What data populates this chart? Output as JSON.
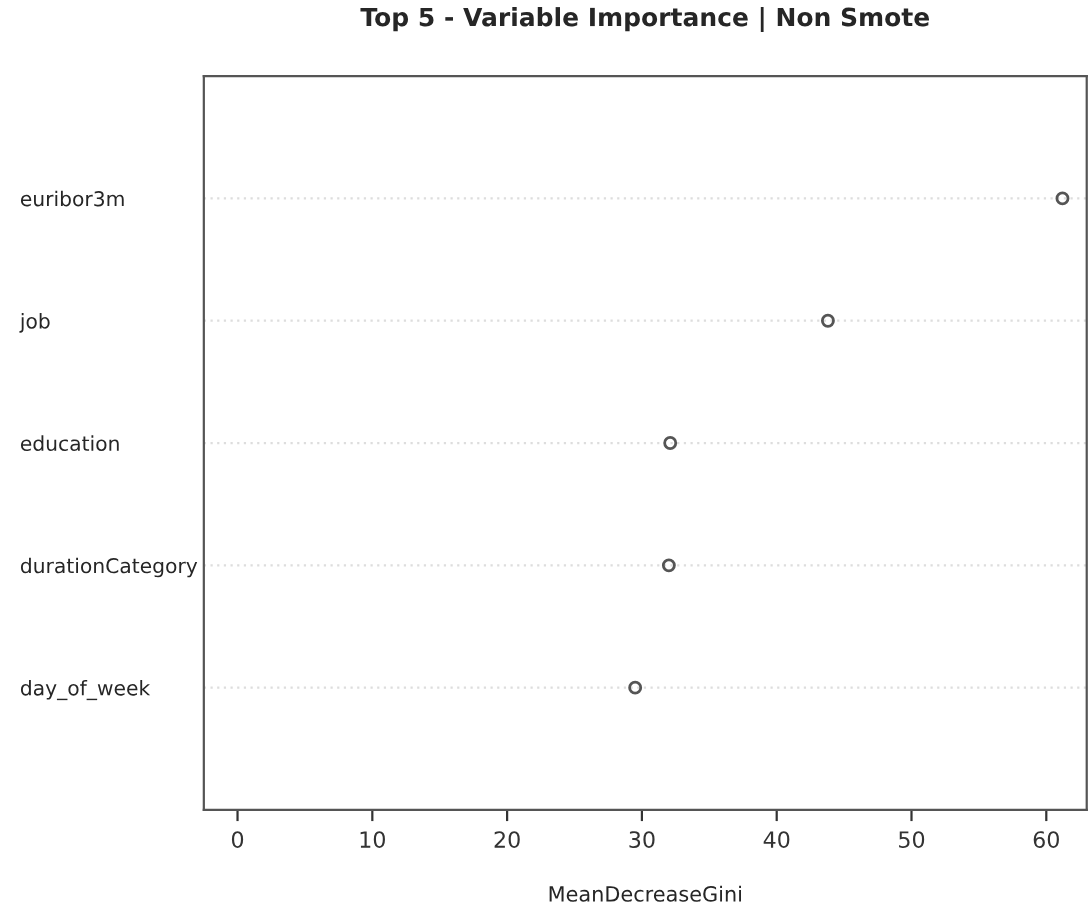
{
  "chart_data": {
    "type": "scatter",
    "title": "Top 5 - Variable Importance | Non Smote",
    "xlabel": "MeanDecreaseGini",
    "categories": [
      "euribor3m",
      "job",
      "education",
      "durationCategory",
      "day_of_week"
    ],
    "orientation": "horizontal",
    "series": [
      {
        "color": "#555555",
        "values": [
          61.2,
          43.8,
          32.1,
          32.0,
          29.5
        ]
      }
    ],
    "xlim": [
      -2.5,
      63
    ],
    "xticks": [
      0,
      10,
      20,
      30,
      40,
      50,
      60
    ],
    "grid": "y",
    "marker": "circle",
    "legend": false
  }
}
